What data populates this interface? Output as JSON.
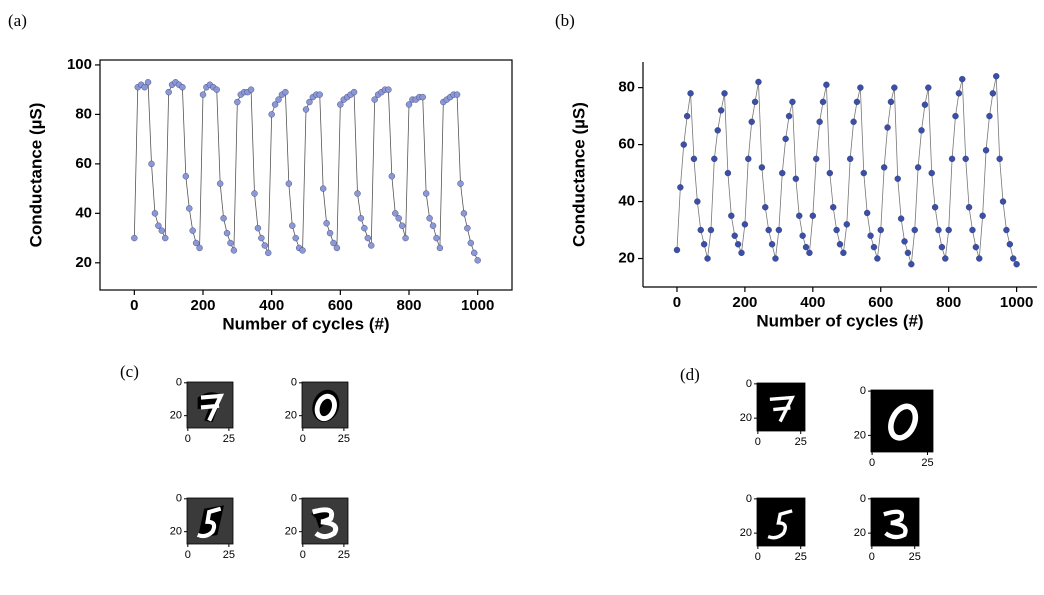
{
  "chart_data": [
    {
      "type": "scatter",
      "panel_label": "(a)",
      "xlabel": "Number of cycles (#)",
      "ylabel": "Conductance (µS)",
      "color": "#8a98d8",
      "line_color": "#555555",
      "x": [
        0,
        10,
        20,
        30,
        40,
        50,
        60,
        70,
        80,
        90,
        100,
        110,
        120,
        130,
        140,
        150,
        160,
        170,
        180,
        190,
        200,
        210,
        220,
        230,
        240,
        250,
        260,
        270,
        280,
        290,
        300,
        310,
        320,
        330,
        340,
        350,
        360,
        370,
        380,
        390,
        400,
        410,
        420,
        430,
        440,
        450,
        460,
        470,
        480,
        490,
        500,
        510,
        520,
        530,
        540,
        550,
        560,
        570,
        580,
        590,
        600,
        610,
        620,
        630,
        640,
        650,
        660,
        670,
        680,
        690,
        700,
        710,
        720,
        730,
        740,
        750,
        760,
        770,
        780,
        790,
        800,
        810,
        820,
        830,
        840,
        850,
        860,
        870,
        880,
        890,
        900,
        910,
        920,
        930,
        940,
        950,
        960,
        970,
        980,
        990,
        1000
      ],
      "values": [
        30,
        91,
        92,
        91,
        93,
        60,
        40,
        35,
        33,
        30,
        89,
        92,
        93,
        92,
        91,
        55,
        42,
        33,
        28,
        26,
        88,
        91,
        92,
        91,
        90,
        52,
        38,
        32,
        28,
        25,
        85,
        88,
        89,
        89,
        90,
        48,
        34,
        30,
        27,
        24,
        80,
        84,
        86,
        88,
        89,
        52,
        35,
        30,
        26,
        25,
        82,
        85,
        87,
        88,
        88,
        50,
        36,
        32,
        28,
        26,
        84,
        86,
        87,
        88,
        89,
        48,
        38,
        34,
        30,
        27,
        86,
        88,
        89,
        90,
        90,
        55,
        40,
        38,
        35,
        30,
        84,
        86,
        86,
        87,
        87,
        48,
        38,
        35,
        30,
        26,
        85,
        86,
        87,
        88,
        88,
        52,
        40,
        34,
        28,
        24,
        21
      ],
      "xlim": [
        -100,
        1100
      ],
      "ylim": [
        9,
        102
      ],
      "xticks": [
        0,
        200,
        400,
        600,
        800,
        1000
      ],
      "yticks": [
        20,
        40,
        60,
        80,
        100
      ]
    },
    {
      "type": "scatter",
      "panel_label": "(b)",
      "xlabel": "Number of cycles (#)",
      "ylabel": "Conductance (µS)",
      "color": "#3a4fa8",
      "line_color": "#777777",
      "x": [
        0,
        10,
        20,
        30,
        40,
        50,
        60,
        70,
        80,
        90,
        100,
        110,
        120,
        130,
        140,
        150,
        160,
        170,
        180,
        190,
        200,
        210,
        220,
        230,
        240,
        250,
        260,
        270,
        280,
        290,
        300,
        310,
        320,
        330,
        340,
        350,
        360,
        370,
        380,
        390,
        400,
        410,
        420,
        430,
        440,
        450,
        460,
        470,
        480,
        490,
        500,
        510,
        520,
        530,
        540,
        550,
        560,
        570,
        580,
        590,
        600,
        610,
        620,
        630,
        640,
        650,
        660,
        670,
        680,
        690,
        700,
        710,
        720,
        730,
        740,
        750,
        760,
        770,
        780,
        790,
        800,
        810,
        820,
        830,
        840,
        850,
        860,
        870,
        880,
        890,
        900,
        910,
        920,
        930,
        940,
        950,
        960,
        970,
        980,
        990,
        1000
      ],
      "values": [
        23,
        45,
        60,
        70,
        78,
        55,
        40,
        30,
        25,
        20,
        30,
        55,
        65,
        72,
        78,
        50,
        35,
        28,
        25,
        22,
        32,
        55,
        68,
        75,
        82,
        52,
        38,
        30,
        25,
        20,
        30,
        50,
        62,
        70,
        75,
        48,
        35,
        28,
        24,
        22,
        35,
        55,
        68,
        75,
        81,
        50,
        38,
        30,
        25,
        22,
        32,
        55,
        68,
        75,
        80,
        50,
        36,
        28,
        24,
        20,
        30,
        52,
        66,
        75,
        80,
        48,
        34,
        26,
        22,
        18,
        30,
        52,
        65,
        74,
        80,
        50,
        38,
        30,
        24,
        20,
        30,
        55,
        70,
        78,
        83,
        55,
        38,
        30,
        24,
        20,
        35,
        58,
        70,
        78,
        84,
        55,
        40,
        30,
        25,
        20,
        18
      ],
      "xlim": [
        -100,
        1060
      ],
      "ylim": [
        10,
        89
      ],
      "xticks": [
        0,
        200,
        400,
        600,
        800,
        1000
      ],
      "yticks": [
        20,
        40,
        60,
        80
      ]
    }
  ],
  "image_panels": [
    {
      "label": "(c)",
      "xlim": [
        -0.5,
        27.5
      ],
      "ylim": [
        -0.5,
        27.5
      ],
      "xticks": [
        0,
        25
      ],
      "yticks": [
        0,
        20
      ]
    },
    {
      "label": "(d)",
      "xlim": [
        -0.5,
        27.5
      ],
      "ylim": [
        -0.5,
        27.5
      ],
      "xticks": [
        0,
        25
      ],
      "yticks": [
        0,
        20
      ]
    }
  ]
}
